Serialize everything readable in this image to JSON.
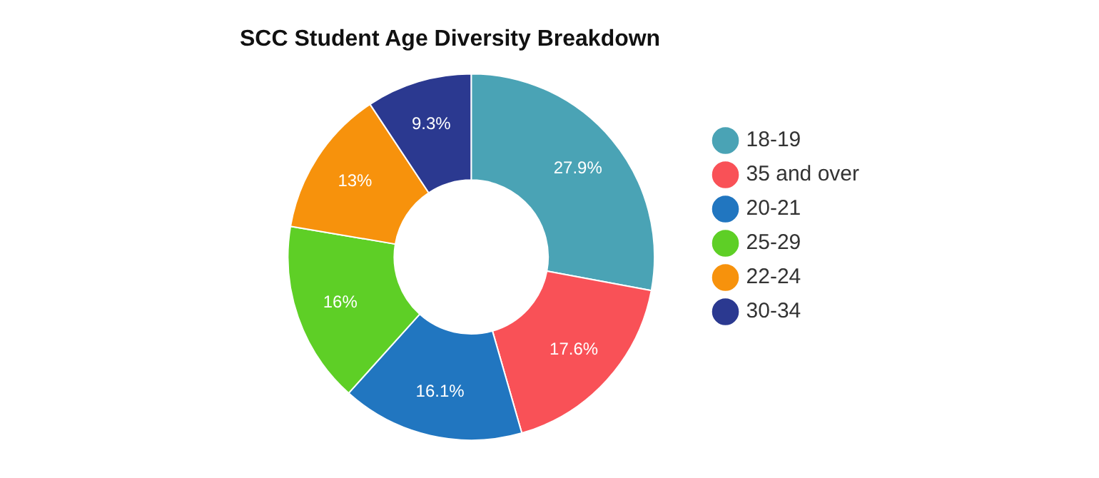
{
  "chart_data": {
    "type": "donut",
    "title": "SCC Student Age Diversity Breakdown",
    "categories": [
      "18-19",
      "35 and over",
      "20-21",
      "25-29",
      "22-24",
      "30-34"
    ],
    "values": [
      27.9,
      17.6,
      16.1,
      16,
      13,
      9.3
    ],
    "colors": [
      "#4aa3b5",
      "#f95157",
      "#2176c0",
      "#5ecf26",
      "#f7920c",
      "#2b3990"
    ],
    "value_labels": [
      "27.9%",
      "17.6%",
      "16.1%",
      "16%",
      "13%",
      "9.3%"
    ],
    "legend": "right"
  }
}
